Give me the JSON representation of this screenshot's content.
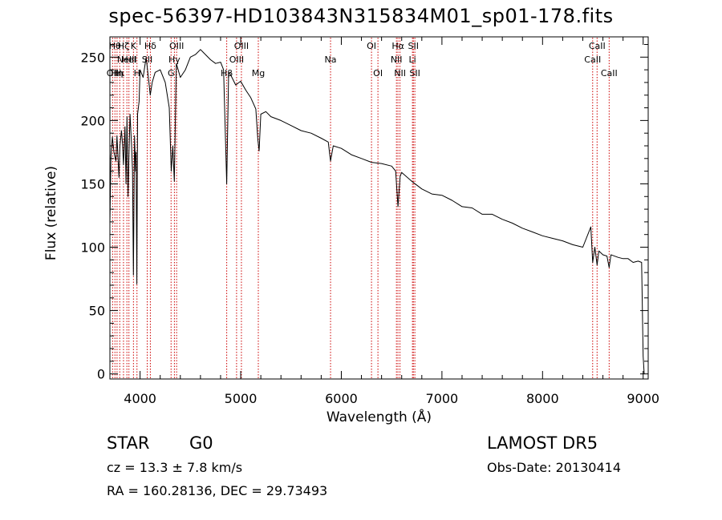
{
  "chart_data": {
    "type": "line",
    "title": "spec-56397-HD103843N315834M01_sp01-178.fits",
    "xlabel": "Wavelength (Å)",
    "ylabel": "Flux (relative)",
    "xlim": [
      3700,
      9050
    ],
    "ylim": [
      -4,
      266
    ],
    "xticks": [
      4000,
      5000,
      6000,
      7000,
      8000,
      9000
    ],
    "yticks": [
      0,
      50,
      100,
      150,
      200,
      250
    ],
    "grid": false,
    "series": [
      {
        "color": "#000000",
        "x": [
          3700,
          3710,
          3725,
          3740,
          3760,
          3770,
          3790,
          3800,
          3815,
          3825,
          3835,
          3850,
          3860,
          3870,
          3880,
          3889,
          3900,
          3915,
          3925,
          3934,
          3945,
          3955,
          3960,
          3968,
          3975,
          3990,
          4000,
          4030,
          4060,
          4101,
          4120,
          4150,
          4200,
          4250,
          4290,
          4310,
          4325,
          4340,
          4360,
          4400,
          4450,
          4500,
          4550,
          4600,
          4650,
          4700,
          4750,
          4800,
          4830,
          4861,
          4880,
          4900,
          4950,
          5000,
          5050,
          5100,
          5150,
          5170,
          5183,
          5200,
          5250,
          5300,
          5400,
          5500,
          5600,
          5700,
          5800,
          5870,
          5893,
          5920,
          6000,
          6100,
          6200,
          6300,
          6400,
          6500,
          6540,
          6563,
          6585,
          6600,
          6700,
          6800,
          6900,
          7000,
          7100,
          7200,
          7300,
          7400,
          7500,
          7600,
          7700,
          7800,
          7900,
          8000,
          8100,
          8200,
          8300,
          8400,
          8480,
          8498,
          8520,
          8542,
          8560,
          8600,
          8640,
          8662,
          8680,
          8750,
          8800,
          8850,
          8900,
          8950,
          8985,
          9000,
          9010
        ],
        "y": [
          120,
          172,
          187,
          175,
          168,
          188,
          155,
          180,
          192,
          182,
          165,
          195,
          150,
          203,
          140,
          172,
          205,
          180,
          160,
          78,
          188,
          160,
          175,
          71,
          205,
          215,
          240,
          234,
          250,
          220,
          230,
          238,
          240,
          230,
          210,
          160,
          180,
          152,
          245,
          234,
          240,
          250,
          252,
          256,
          252,
          248,
          245,
          246,
          240,
          150,
          238,
          236,
          228,
          231,
          224,
          218,
          209,
          185,
          176,
          205,
          207,
          203,
          200,
          196,
          192,
          190,
          186,
          183,
          168,
          180,
          178,
          173,
          170,
          167,
          166,
          164,
          160,
          132,
          156,
          159,
          152,
          146,
          142,
          141,
          137,
          132,
          131,
          126,
          126,
          122,
          119,
          115,
          112,
          109,
          107,
          105,
          102,
          100,
          116,
          88,
          100,
          86,
          97,
          94,
          93,
          84,
          94,
          92,
          91,
          91,
          88,
          89,
          88,
          14,
          0
        ]
      }
    ],
    "lines": [
      {
        "x": 3727,
        "label": "OII",
        "row": 2
      },
      {
        "x": 3750,
        "label": "Hθ",
        "row": 0
      },
      {
        "x": 3771,
        "label": "Hη",
        "row": 2
      },
      {
        "x": 3798,
        "label": "Hι",
        "row": 2
      },
      {
        "x": 3835,
        "label": "Hζ",
        "row": 0
      },
      {
        "x": 3869,
        "label": "NeIII",
        "row": 1
      },
      {
        "x": 3889,
        "label": "HeI",
        "row": 1
      },
      {
        "x": 3934,
        "label": "K",
        "row": 0
      },
      {
        "x": 3969,
        "label": "H",
        "row": 2
      },
      {
        "x": 4071,
        "label": "SII",
        "row": 1
      },
      {
        "x": 4102,
        "label": "Hδ",
        "row": 0
      },
      {
        "x": 4308,
        "label": "G",
        "row": 2
      },
      {
        "x": 4341,
        "label": "Hγ",
        "row": 1
      },
      {
        "x": 4363,
        "label": "OIII",
        "row": 0
      },
      {
        "x": 4861,
        "label": "Hβ",
        "row": 2
      },
      {
        "x": 4959,
        "label": "OIII",
        "row": 1
      },
      {
        "x": 5007,
        "label": "OIII",
        "row": 0
      },
      {
        "x": 5175,
        "label": "Mg",
        "row": 2
      },
      {
        "x": 5893,
        "label": "Na",
        "row": 1
      },
      {
        "x": 6300,
        "label": "OI",
        "row": 0
      },
      {
        "x": 6364,
        "label": "OI",
        "row": 2
      },
      {
        "x": 6548,
        "label": "NII",
        "row": 1
      },
      {
        "x": 6563,
        "label": "Hα",
        "row": 0
      },
      {
        "x": 6583,
        "label": "NII",
        "row": 2
      },
      {
        "x": 6707,
        "label": "Li",
        "row": 1
      },
      {
        "x": 6716,
        "label": "SII",
        "row": 0
      },
      {
        "x": 6731,
        "label": "SII",
        "row": 2
      },
      {
        "x": 8498,
        "label": "CaII",
        "row": 1
      },
      {
        "x": 8542,
        "label": "CaII",
        "row": 0
      },
      {
        "x": 8662,
        "label": "CaII",
        "row": 2
      }
    ],
    "line_color": "#cc0000"
  },
  "info": {
    "class": "STAR",
    "subclass": "G0",
    "survey": "LAMOST  DR5",
    "cz": "cz = 13.3 ± 7.8 km/s",
    "obs_date": "Obs-Date: 20130414",
    "radec": "RA = 160.28136, DEC =  29.73493"
  }
}
